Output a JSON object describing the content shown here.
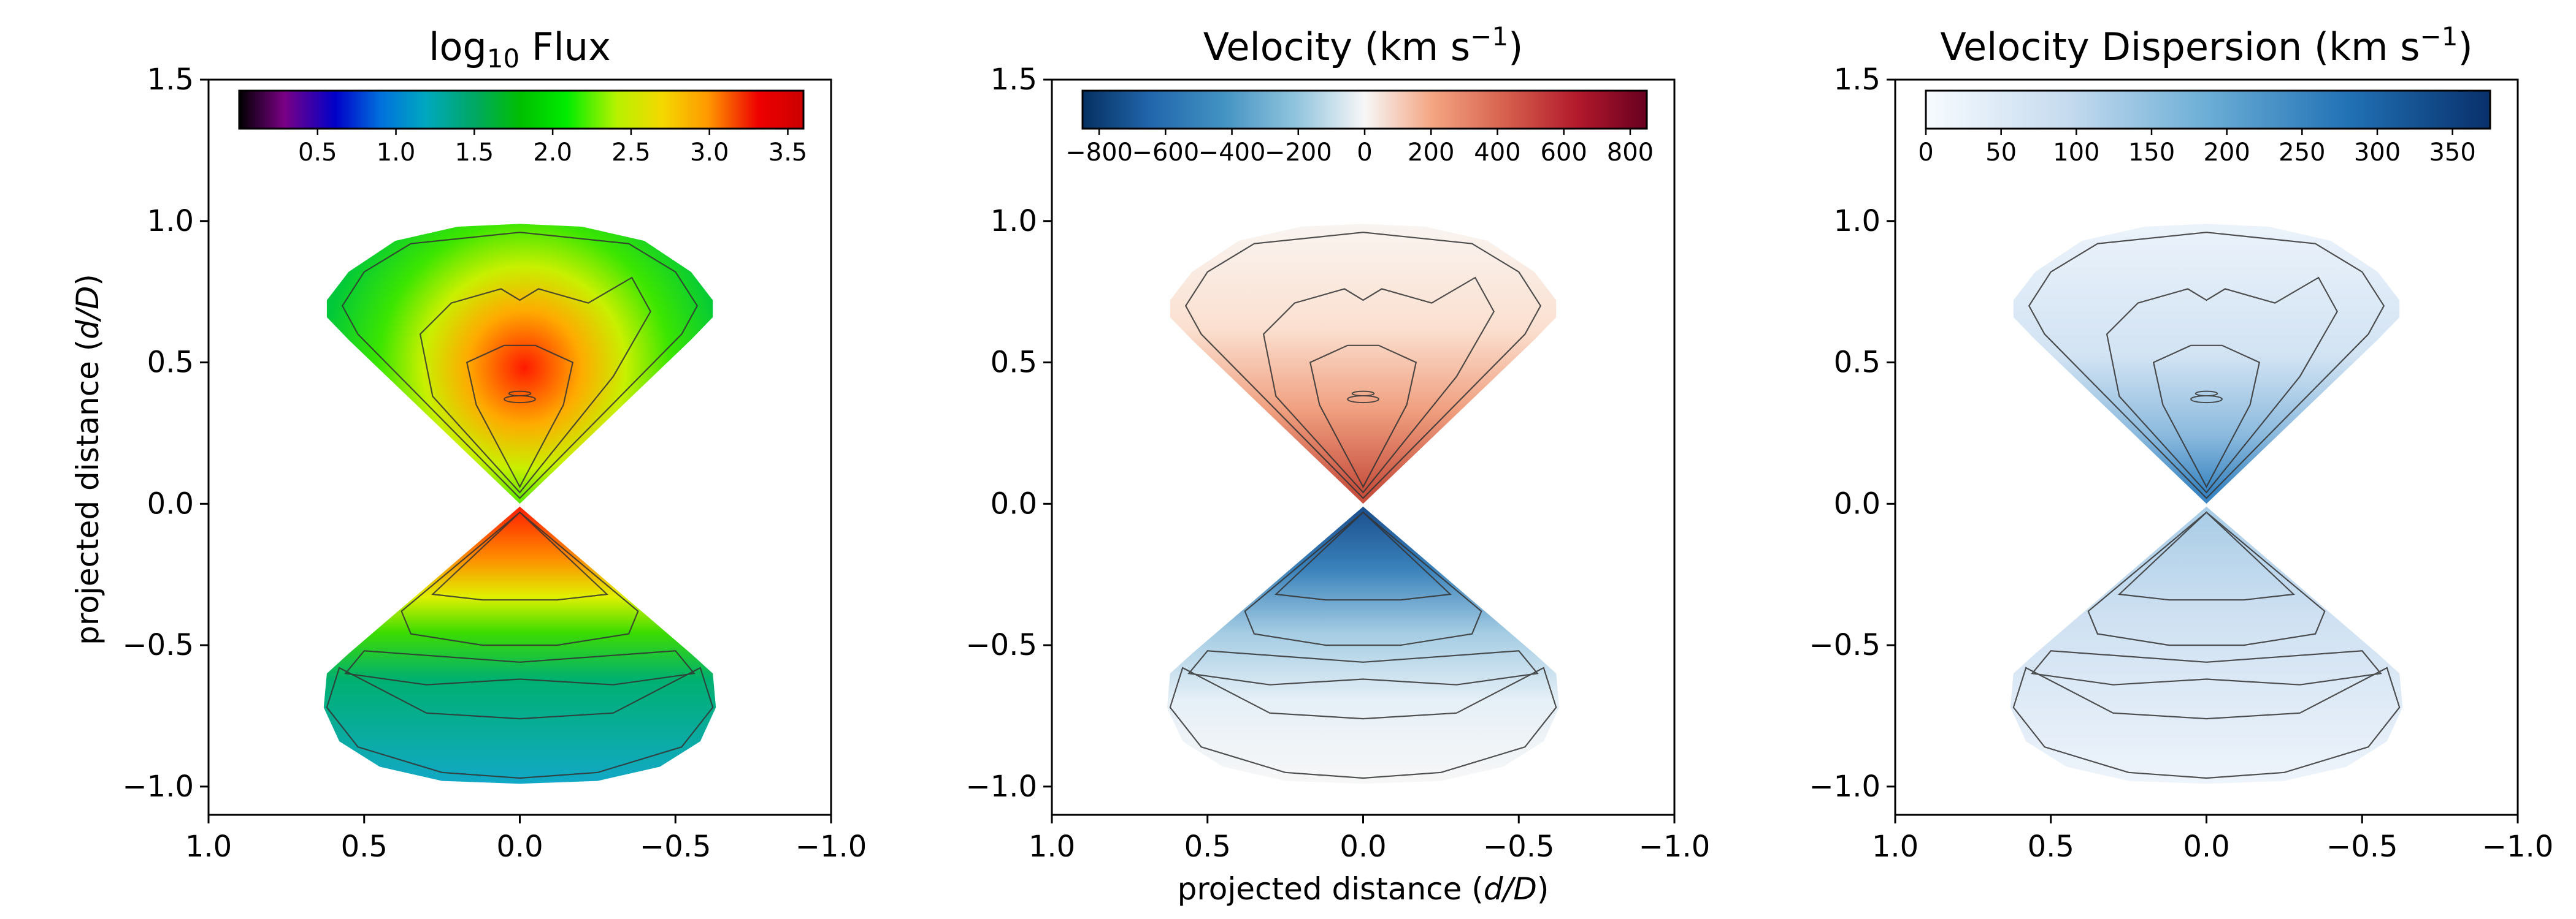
{
  "chart_data": [
    {
      "type": "heatmap",
      "title_main": "log",
      "title_sub": "10",
      "title_rest": " Flux",
      "xlabel": "",
      "ylabel_pre": "projected distance (",
      "ylabel_ital": "d/D",
      "ylabel_post": ")",
      "xlim": [
        1.0,
        -1.0
      ],
      "ylim": [
        -1.1,
        1.5
      ],
      "xticks": [
        "1.0",
        "0.5",
        "0.0",
        "−0.5",
        "−1.0"
      ],
      "yticks": [
        "−1.0",
        "−0.5",
        "0.0",
        "0.5",
        "1.0",
        "1.5"
      ],
      "colorbar": {
        "colormap": "nipy_spectral",
        "range": [
          0.0,
          3.6
        ],
        "ticks": [
          "0.5",
          "1.0",
          "1.5",
          "2.0",
          "2.5",
          "3.0",
          "3.5"
        ]
      },
      "contours": true
    },
    {
      "type": "heatmap",
      "title_main": "Velocity (km s",
      "title_sup": "−1",
      "title_rest": ")",
      "xlabel_pre": "projected distance (",
      "xlabel_ital": "d/D",
      "xlabel_post": ")",
      "xlim": [
        1.0,
        -1.0
      ],
      "ylim": [
        -1.1,
        1.5
      ],
      "xticks": [
        "1.0",
        "0.5",
        "0.0",
        "−0.5",
        "−1.0"
      ],
      "yticks": [
        "−1.0",
        "−0.5",
        "0.0",
        "0.5",
        "1.0",
        "1.5"
      ],
      "colorbar": {
        "colormap": "RdBu_r",
        "range": [
          -850,
          850
        ],
        "ticks": [
          "−800",
          "−600",
          "−400",
          "−200",
          "0",
          "200",
          "400",
          "600",
          "800"
        ]
      },
      "contours": true
    },
    {
      "type": "heatmap",
      "title_main": "Velocity Dispersion (km s",
      "title_sup": "−1",
      "title_rest": ")",
      "xlabel": "",
      "xlim": [
        1.0,
        -1.0
      ],
      "ylim": [
        -1.1,
        1.5
      ],
      "xticks": [
        "1.0",
        "0.5",
        "0.0",
        "−0.5",
        "−1.0"
      ],
      "yticks": [
        "−1.0",
        "−0.5",
        "0.0",
        "0.5",
        "1.0",
        "1.5"
      ],
      "colorbar": {
        "colormap": "Blues",
        "range": [
          0,
          375
        ],
        "ticks": [
          "0",
          "50",
          "100",
          "150",
          "200",
          "250",
          "300",
          "350"
        ]
      },
      "contours": true
    }
  ]
}
